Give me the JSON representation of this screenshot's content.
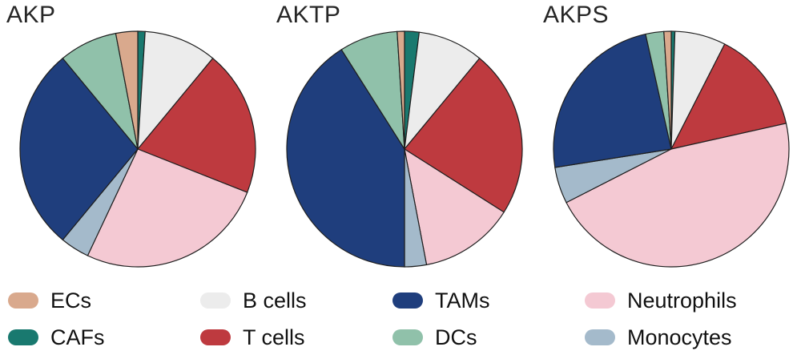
{
  "figure": {
    "background": "#ffffff",
    "outline_color": "#1f1f1f",
    "text_color": "#262626"
  },
  "palette": {
    "ECs": "#D9A98D",
    "CAFs": "#19796F",
    "B cells": "#ECECEC",
    "T cells": "#BE3A3F",
    "TAMs": "#1F3E7D",
    "DCs": "#90C1AA",
    "Neutrophils": "#F4C9D3",
    "Monocytes": "#A4BACB"
  },
  "legend": {
    "items": [
      {
        "label": "ECs"
      },
      {
        "label": "B cells"
      },
      {
        "label": "TAMs"
      },
      {
        "label": "Neutrophils"
      },
      {
        "label": "CAFs"
      },
      {
        "label": "T cells"
      },
      {
        "label": "DCs"
      },
      {
        "label": "Monocytes"
      }
    ]
  },
  "chart_data": [
    {
      "type": "pie",
      "title": "AKP",
      "unit": "percent",
      "order": "clockwise from 12 o'clock",
      "segments": [
        {
          "label": "CAFs",
          "value": 1
        },
        {
          "label": "B cells",
          "value": 10
        },
        {
          "label": "T cells",
          "value": 20
        },
        {
          "label": "Neutrophils",
          "value": 26
        },
        {
          "label": "Monocytes",
          "value": 4
        },
        {
          "label": "TAMs",
          "value": 28
        },
        {
          "label": "DCs",
          "value": 8
        },
        {
          "label": "ECs",
          "value": 3
        }
      ]
    },
    {
      "type": "pie",
      "title": "AKTP",
      "unit": "percent",
      "order": "clockwise from 12 o'clock",
      "segments": [
        {
          "label": "CAFs",
          "value": 2
        },
        {
          "label": "B cells",
          "value": 9
        },
        {
          "label": "T cells",
          "value": 23
        },
        {
          "label": "Neutrophils",
          "value": 13
        },
        {
          "label": "Monocytes",
          "value": 3
        },
        {
          "label": "TAMs",
          "value": 41
        },
        {
          "label": "DCs",
          "value": 8
        },
        {
          "label": "ECs",
          "value": 1
        }
      ]
    },
    {
      "type": "pie",
      "title": "AKPS",
      "unit": "percent",
      "order": "clockwise from 12 o'clock",
      "segments": [
        {
          "label": "CAFs",
          "value": 0.5
        },
        {
          "label": "B cells",
          "value": 7
        },
        {
          "label": "T cells",
          "value": 14
        },
        {
          "label": "Neutrophils",
          "value": 46
        },
        {
          "label": "Monocytes",
          "value": 5
        },
        {
          "label": "TAMs",
          "value": 24
        },
        {
          "label": "DCs",
          "value": 2.5
        },
        {
          "label": "ECs",
          "value": 1
        }
      ]
    }
  ]
}
